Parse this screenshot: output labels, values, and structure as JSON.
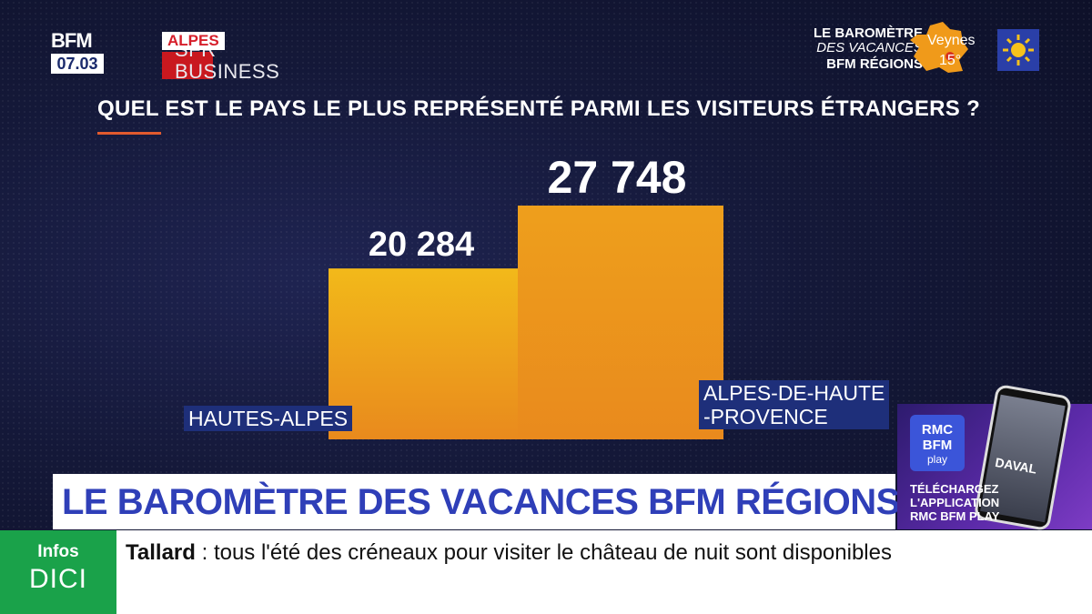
{
  "logo": {
    "brand": "BFM",
    "region": "ALPES",
    "time": "07.03",
    "network": "SFR BUSINESS"
  },
  "barometer": {
    "line1": "LE BAROMÈTRE",
    "line2": "DES VACANCES",
    "line3": "BFM RÉGIONS",
    "city": "Veynes",
    "temperature": "15°",
    "weather_icon": "sun-icon"
  },
  "question": "QUEL EST LE PAYS LE PLUS REPRÉSENTÉ PARMI LES VISITEURS ÉTRANGERS ?",
  "chart_data": {
    "type": "bar",
    "title": "QUEL EST LE PAYS LE PLUS REPRÉSENTÉ PARMI LES VISITEURS ÉTRANGERS ?",
    "categories": [
      "HAUTES-ALPES",
      "ALPES-DE-HAUTE -PROVENCE"
    ],
    "category_lines": [
      [
        "HAUTES-ALPES"
      ],
      [
        "ALPES-DE-HAUTE",
        "-PROVENCE"
      ]
    ],
    "values": [
      20284,
      27748
    ],
    "value_labels": [
      "20 284",
      "27 748"
    ],
    "colors": [
      "#f2b91a",
      "#ee9f1c"
    ],
    "xlabel": "",
    "ylabel": "",
    "grid": false
  },
  "banner": "LE BAROMÈTRE DES VACANCES BFM RÉGIONS",
  "promo": {
    "logo_line1": "RMC",
    "logo_line2": "BFM",
    "logo_line3": "play",
    "phone_title": "DAVAL",
    "line1": "TÉLÉCHARGEZ",
    "line2": "L'APPLICATION",
    "line3": "RMC BFM PLAY"
  },
  "ticker": {
    "tag_top": "Infos",
    "tag_bottom": "DICI",
    "place": "Tallard",
    "separator": " : ",
    "text": "tous l'été des créneaux pour visiter le château de nuit sont disponibles"
  }
}
